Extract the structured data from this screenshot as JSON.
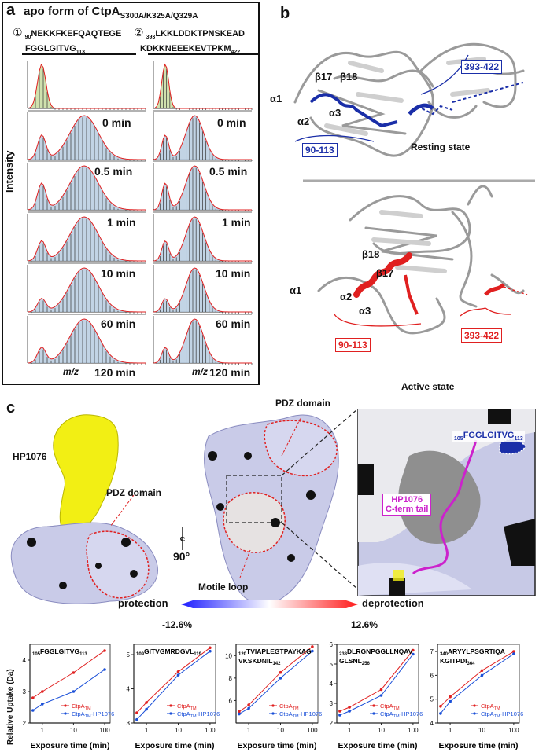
{
  "panel_a": {
    "letter": "a",
    "title": "apo form of CtpA",
    "title_sub": "S300A/K325A/Q329A",
    "pep1_marker": "①",
    "pep1_start": "90",
    "pep1_line1": "NEKKFKEFQAQTEGE",
    "pep1_line2": "FGGLGITVG",
    "pep1_end": "113",
    "pep2_marker": "②",
    "pep2_start": "393",
    "pep2_line1": "LKKLDDKTPNSKEAD",
    "pep2_line2": "KDKKNEEEKEVTPKM",
    "pep2_end": "422",
    "ylabel": "Intensity",
    "xlabel": "m/z",
    "times": [
      "0 min",
      "0.5 min",
      "1 min",
      "10 min",
      "60 min",
      "120 min"
    ]
  },
  "panel_b": {
    "letter": "b",
    "resting": {
      "title": "Resting state",
      "labels": [
        "α1",
        "α2",
        "α3",
        "β17",
        "β18"
      ],
      "range1": "90-113",
      "range2": "393-422"
    },
    "active": {
      "title": "Active state",
      "labels": [
        "α1",
        "α2",
        "α3",
        "β17",
        "β18"
      ],
      "range1": "90-113",
      "range2": "393-422"
    }
  },
  "panel_c": {
    "letter": "c",
    "hp1076": "HP1076",
    "pdz1": "PDZ domain",
    "pdz2": "PDZ domain",
    "rotation": "90°",
    "motile_loop": "Motile loop",
    "inset_peptide_start": "105",
    "inset_peptide": "FGGLGITVG",
    "inset_peptide_end": "113",
    "tail_line1": "HP1076",
    "tail_line2": "C-term tail",
    "scale_left": "protection",
    "scale_right": "deprotection",
    "scale_min": "-12.6%",
    "scale_max": "12.6%",
    "colors": {
      "blue": "#1a2ea8",
      "red": "#e02020",
      "yellow": "#f2ef14",
      "magenta": "#cc22cc"
    }
  },
  "uptake": {
    "ylabel": "Relative Uptake (Da)",
    "xlabel": "Exposure time (min)",
    "legend_a": "CtpA",
    "legend_a_sub": "TM",
    "legend_b": "CtpA",
    "legend_b_sub": "TM",
    "legend_b_suffix": "-HP1076",
    "xticks": [
      "1",
      "10",
      "100"
    ]
  },
  "chart_data": [
    {
      "type": "line",
      "title": "105FGGLGITVG113",
      "x": [
        0.5,
        1,
        10,
        100
      ],
      "series": [
        {
          "name": "CtpA TM",
          "values": [
            2.8,
            3.0,
            3.6,
            4.3
          ]
        },
        {
          "name": "CtpA TM-HP1076",
          "values": [
            2.4,
            2.6,
            3.0,
            3.7
          ]
        }
      ],
      "ylim": [
        2,
        4.5
      ],
      "yticks": [
        "2",
        "3",
        "4"
      ],
      "pep_start": "105",
      "pep": "FGGLGITVG",
      "pep_end": "113",
      "pep2": ""
    },
    {
      "type": "line",
      "title": "109GITVGMRDGVL119",
      "x": [
        0.5,
        1,
        10,
        100
      ],
      "series": [
        {
          "name": "CtpA TM",
          "values": [
            3.3,
            3.6,
            4.5,
            5.2
          ]
        },
        {
          "name": "CtpA TM-HP1076",
          "values": [
            3.1,
            3.4,
            4.4,
            5.1
          ]
        }
      ],
      "ylim": [
        3,
        5.3
      ],
      "yticks": [
        "3",
        "4",
        "5"
      ],
      "pep_start": "109",
      "pep": "GITVGMRDGVL",
      "pep_end": "119",
      "pep2": ""
    },
    {
      "type": "line",
      "title": "120TVIAPLEGTPAYKAG VKSKDNIL142",
      "x": [
        0.5,
        1,
        10,
        100
      ],
      "series": [
        {
          "name": "CtpA TM",
          "values": [
            5.0,
            5.6,
            8.5,
            10.8
          ]
        },
        {
          "name": "CtpA TM-HP1076",
          "values": [
            4.8,
            5.3,
            8.0,
            10.4
          ]
        }
      ],
      "ylim": [
        4,
        11
      ],
      "yticks": [
        "6",
        "8",
        "10"
      ],
      "pep_start": "120",
      "pep": "TVIAPLEGTPAYKAG",
      "pep_end": "142",
      "pep2": "VKSKDNIL"
    },
    {
      "type": "line",
      "title": "238DLRGNPGGLLNQAV GLSNL256",
      "x": [
        0.5,
        1,
        10,
        100
      ],
      "series": [
        {
          "name": "CtpA TM",
          "values": [
            2.6,
            2.8,
            3.7,
            5.7
          ]
        },
        {
          "name": "CtpA TM-HP1076",
          "values": [
            2.4,
            2.6,
            3.4,
            5.5
          ]
        }
      ],
      "ylim": [
        2,
        6
      ],
      "yticks": [
        "2",
        "3",
        "4",
        "5",
        "6"
      ],
      "pep_start": "238",
      "pep": "DLRGNPGGLLNQAV",
      "pep_end": "256",
      "pep2": "GLSNL"
    },
    {
      "type": "line",
      "title": "340ARYYLPSGRTIQA KGITPDI364",
      "x": [
        0.5,
        1,
        10,
        100
      ],
      "series": [
        {
          "name": "CtpA TM",
          "values": [
            4.7,
            5.1,
            6.2,
            7.0
          ]
        },
        {
          "name": "CtpA TM-HP1076",
          "values": [
            4.4,
            4.9,
            6.0,
            6.9
          ]
        }
      ],
      "ylim": [
        4,
        7.3
      ],
      "yticks": [
        "4",
        "5",
        "6",
        "7"
      ],
      "pep_start": "340",
      "pep": "ARYYLPSGRTIQA",
      "pep_end": "364",
      "pep2": "KGITPDI"
    }
  ]
}
